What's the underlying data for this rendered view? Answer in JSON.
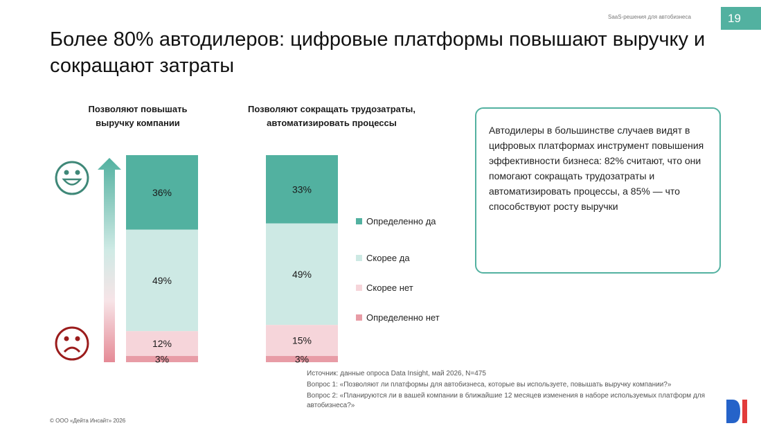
{
  "header": {
    "topline": "SaaS-решения для автобизнеса",
    "page_number": "19"
  },
  "title": "Более 80% автодилеров: цифровые платформы повышают выручку и сокращают затраты",
  "columns": [
    {
      "heading": "Позволяют повышать выручку компании"
    },
    {
      "heading": "Позволяют сокращать трудозатраты, автоматизировать процессы"
    }
  ],
  "chart_data": {
    "type": "bar",
    "stacked": true,
    "percent": true,
    "categories": [
      "Позволяют повышать выручку компании",
      "Позволяют сокращать трудозатраты, автоматизировать процессы"
    ],
    "series": [
      {
        "name": "Определенно да",
        "values": [
          36,
          33
        ],
        "labels": [
          "36%",
          "33%"
        ],
        "color": "#52b1a0"
      },
      {
        "name": "Скорее да",
        "values": [
          49,
          49
        ],
        "labels": [
          "49%",
          "49%"
        ],
        "color": "#cde9e4"
      },
      {
        "name": "Скорее нет",
        "values": [
          12,
          15
        ],
        "labels": [
          "12%",
          "15%"
        ],
        "color": "#f6d5da"
      },
      {
        "name": "Определенно нет",
        "values": [
          3,
          3
        ],
        "labels": [
          "3%",
          "3%"
        ],
        "color": "#e89ca6"
      }
    ],
    "ylim": [
      0,
      100
    ],
    "legend_position": "right"
  },
  "icons": {
    "positive": "smiley-happy-icon",
    "negative": "smiley-sad-icon",
    "scale": "gradient-arrow-up-icon"
  },
  "callout": {
    "text": "Автодилеры в большинстве случаев видят в цифровых платформах инструмент повышения эффективности бизнеса: 82% считают, что они помогают сокращать трудозатраты и автоматизировать процессы, а 85% — что способствуют росту выручки"
  },
  "source": {
    "line1": "Источник: данные опроса Data Insight, май 2026, N=475",
    "question1": "Вопрос 1: «Позволяют ли платформы для автобизнеса, которые вы используете, повышать выручку компании?»",
    "question2": "Вопрос 2: «Планируются ли в вашей компании в ближайшие 12 месяцев изменения в наборе используемых платформ для автобизнеса?»"
  },
  "footer": {
    "copyright": "© ООО «Дейта Инсайт» 2026"
  },
  "colors": {
    "accent": "#52b1a0",
    "happy": "#3f8878",
    "sad": "#9b1c1c",
    "logo_blue": "#2563c9",
    "logo_red": "#e23b3b"
  }
}
